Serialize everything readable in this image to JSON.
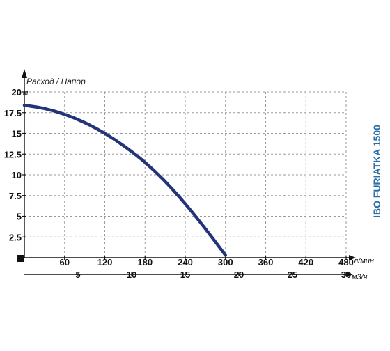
{
  "chart_data": {
    "type": "line",
    "ylabel": "Расход / Напор",
    "y_unit": "м",
    "x_unit": "л/мин",
    "x2_unit": "м3/ч",
    "side_title": "IBO FURIATKA 1500",
    "ylim": [
      0,
      20
    ],
    "xlim": [
      0,
      480
    ],
    "x2lim": [
      0,
      30
    ],
    "y_ticks": [
      "2.5",
      "5",
      "7.5",
      "10",
      "12.5",
      "15",
      "17.5",
      "20"
    ],
    "y_tick_values": [
      2.5,
      5,
      7.5,
      10,
      12.5,
      15,
      17.5,
      20
    ],
    "x_ticks": [
      "60",
      "120",
      "180",
      "240",
      "300",
      "360",
      "420",
      "480"
    ],
    "x_tick_values": [
      60,
      120,
      180,
      240,
      300,
      360,
      420,
      480
    ],
    "x2_ticks": [
      "5",
      "10",
      "15",
      "20",
      "25",
      "30"
    ],
    "x2_tick_values": [
      5,
      10,
      15,
      20,
      25,
      30
    ],
    "grid": true,
    "colors": {
      "curve": "#243479",
      "title": "#2a6fa8",
      "grid": "#9a9a9a",
      "axis": "#111111"
    },
    "series": [
      {
        "x": [
          0,
          30,
          60,
          90,
          120,
          150,
          180,
          210,
          240,
          270,
          300
        ],
        "y": [
          18.4,
          18.0,
          17.3,
          16.3,
          15.0,
          13.4,
          11.5,
          9.2,
          6.5,
          3.5,
          0.3
        ]
      }
    ]
  }
}
